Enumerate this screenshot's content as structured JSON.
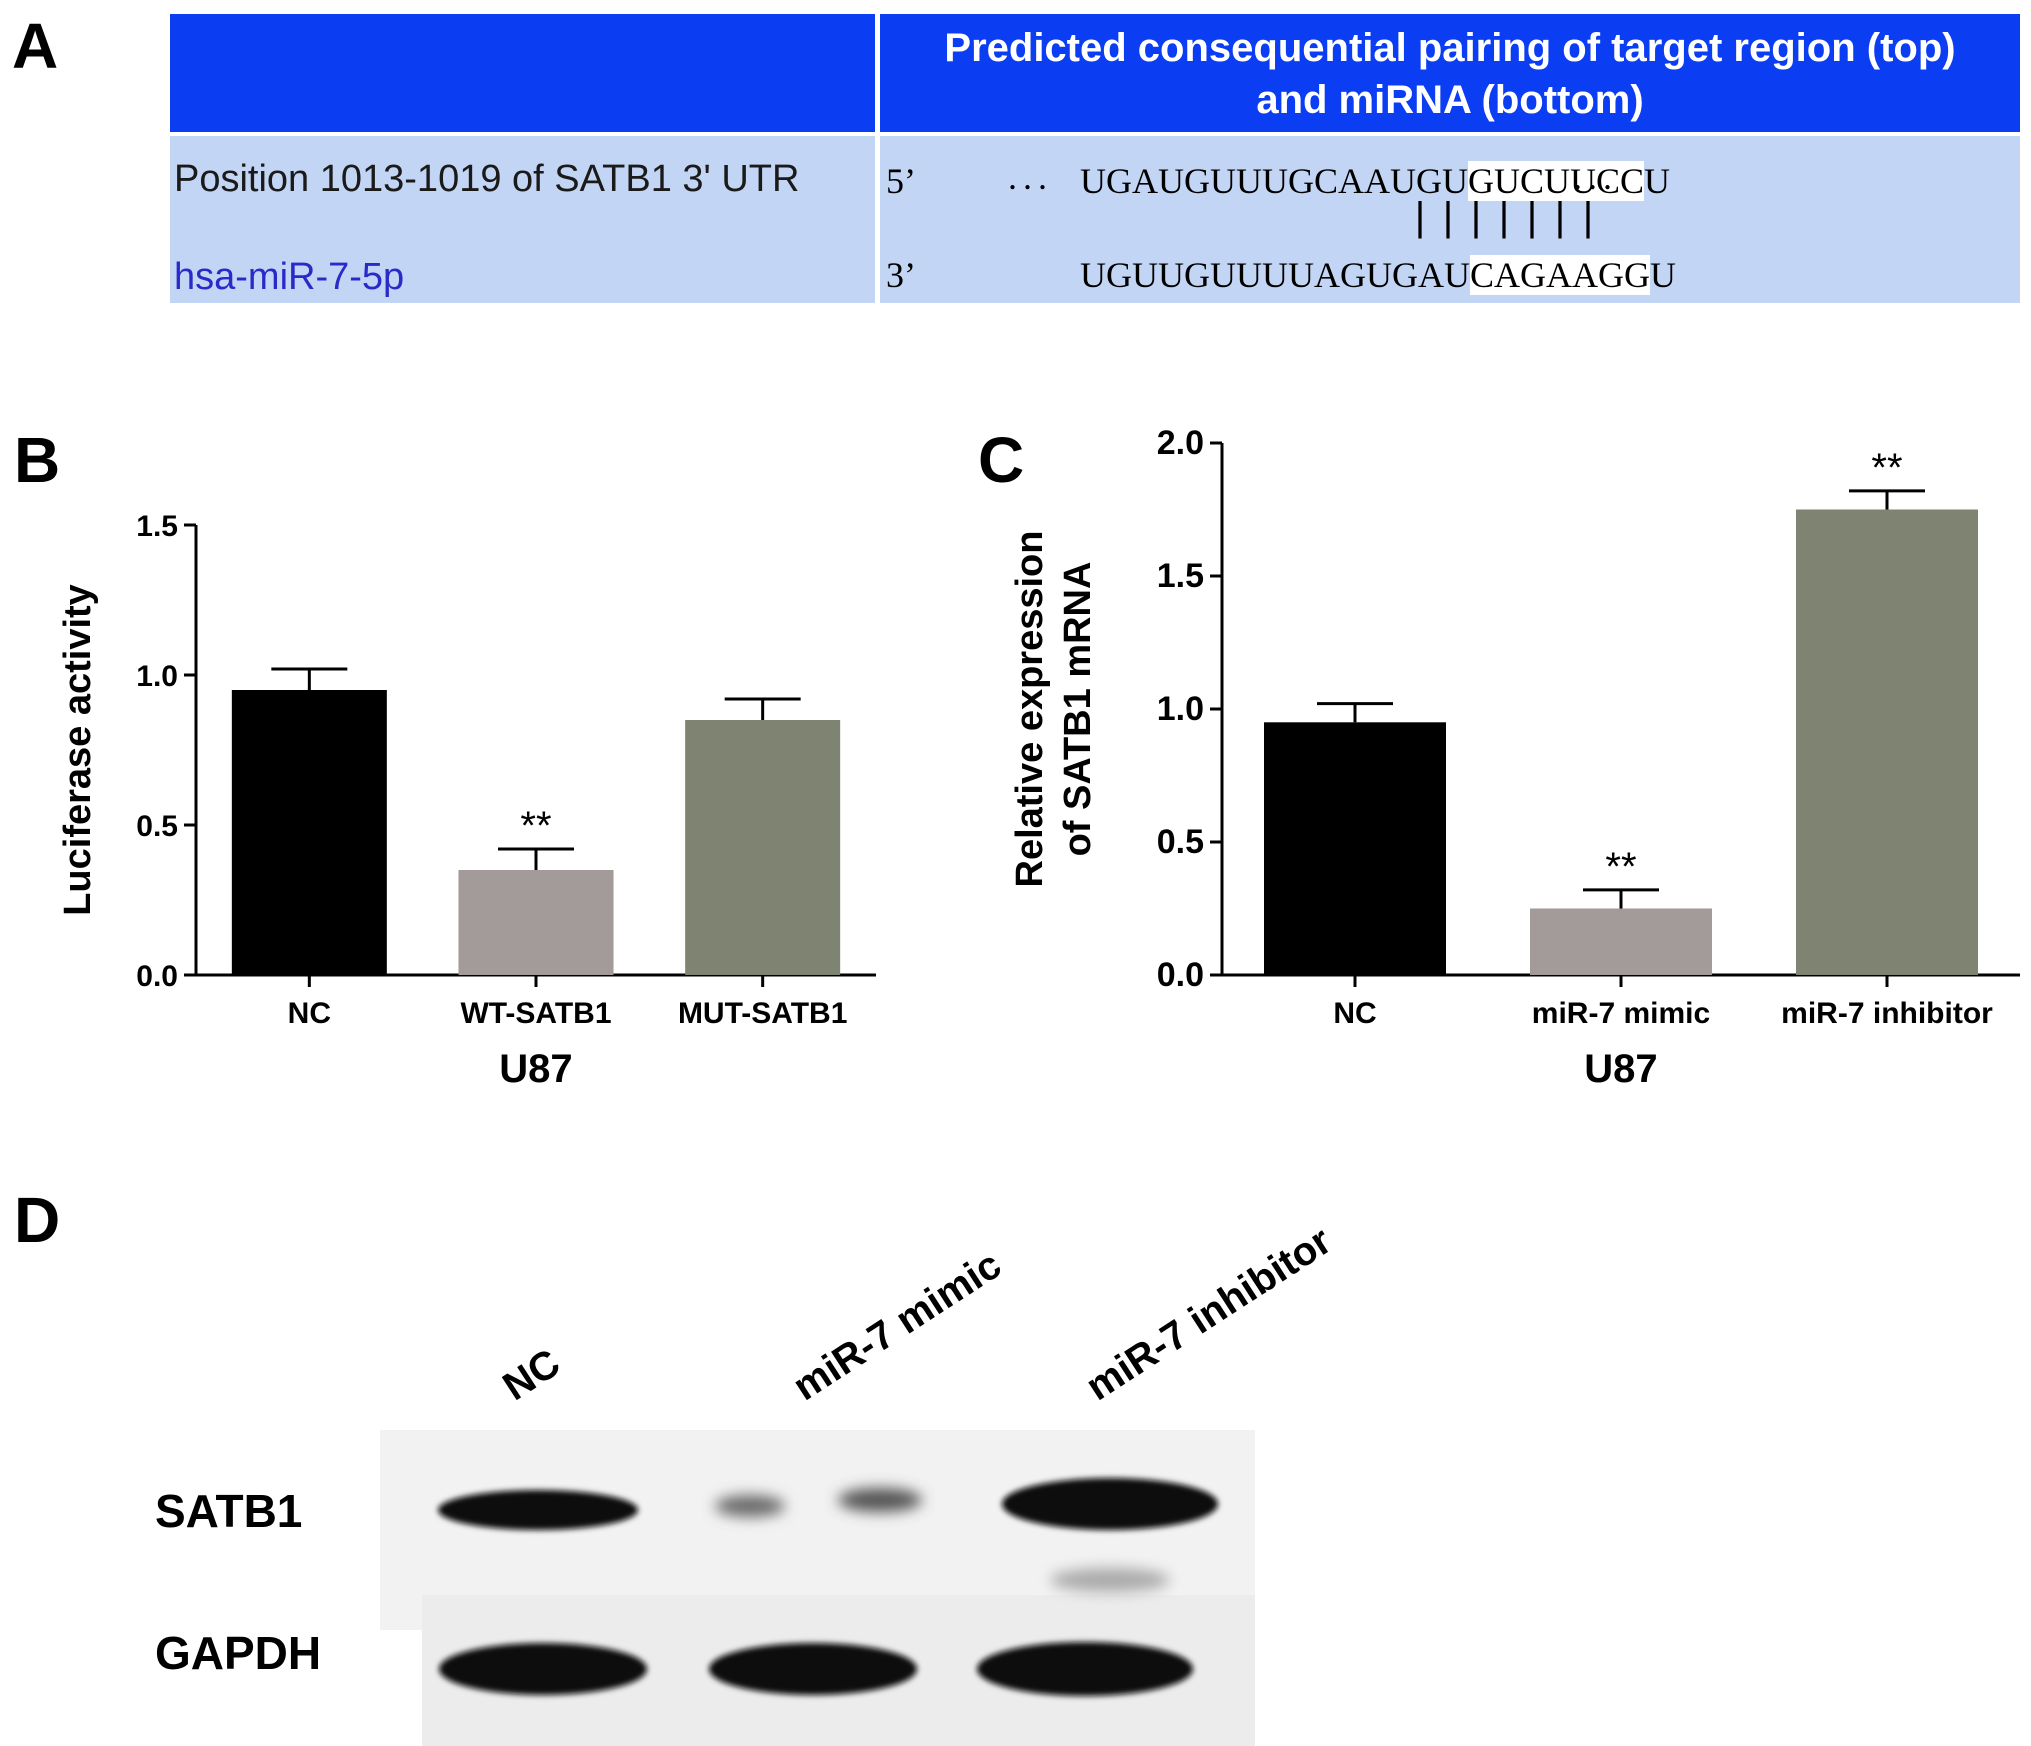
{
  "panels": {
    "a": "A",
    "b": "B",
    "c": "C",
    "d": "D"
  },
  "table_a": {
    "header_right": [
      "Predicted consequential pairing of target region (top)",
      "and miRNA (bottom)"
    ],
    "rows": [
      {
        "label": "Position 1013-1019 of SATB1 3' UTR",
        "end": "5’",
        "seq_plain": "UGAUGUUUGCAAUGU",
        "seq_seed": "GUCUUCC",
        "seq_tail": "U",
        "dots_before": "...",
        "dots_after": "..."
      },
      {
        "label": "hsa-miR-7-5p",
        "end": "3’",
        "seq_plain": "UGUUGUUUUAGUGAU",
        "seq_seed": "CAGAAGG",
        "seq_tail": "U"
      }
    ],
    "pairing": "|||||||",
    "colors": {
      "header": "#0b3df2",
      "row": "#c3d5f4",
      "mirna_label": "#2a2ac8"
    }
  },
  "chart_data": [
    {
      "id": "B",
      "type": "bar",
      "categories": [
        "NC",
        "WT-SATB1",
        "MUT-SATB1"
      ],
      "values": [
        0.95,
        0.35,
        0.85
      ],
      "errors": [
        0.07,
        0.07,
        0.07
      ],
      "significance": [
        "",
        "**",
        ""
      ],
      "colors": [
        "#000000",
        "#a39a9a",
        "#7f8371"
      ],
      "xlabel": "U87",
      "ylabel": "Luciferase activity",
      "ylim": [
        0,
        1.5
      ],
      "yticks": [
        "0.0",
        "0.5",
        "1.0",
        "1.5"
      ],
      "grid": false
    },
    {
      "id": "C",
      "type": "bar",
      "categories": [
        "NC",
        "miR-7 mimic",
        "miR-7 inhibitor"
      ],
      "values": [
        0.95,
        0.25,
        1.75
      ],
      "errors": [
        0.07,
        0.07,
        0.07
      ],
      "significance": [
        "",
        "**",
        "**"
      ],
      "colors": [
        "#000000",
        "#a39a9a",
        "#7f8371"
      ],
      "xlabel": "U87",
      "ylabel_lines": [
        "Relative expression",
        "of SATB1 mRNA"
      ],
      "ylim": [
        0,
        2.0
      ],
      "yticks": [
        "0.0",
        "0.5",
        "1.0",
        "1.5",
        "2.0"
      ],
      "grid": false
    }
  ],
  "blot_d": {
    "lanes": [
      "NC",
      "miR-7 mimic",
      "miR-7 inhibitor"
    ],
    "rows": [
      "SATB1",
      "GAPDH"
    ],
    "satb1_intensity": [
      0.85,
      0.2,
      0.95
    ],
    "gapdh_intensity": [
      0.95,
      0.95,
      0.95
    ]
  }
}
